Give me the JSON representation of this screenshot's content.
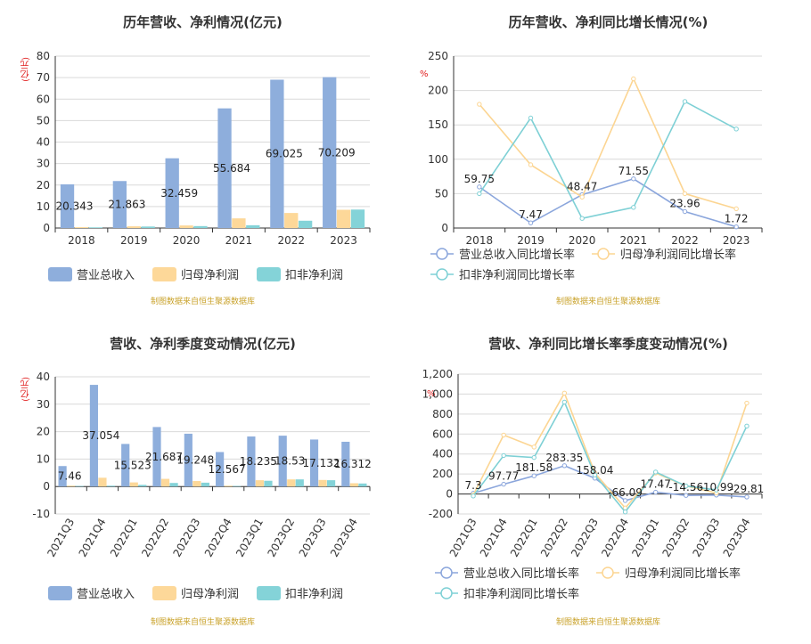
{
  "colors": {
    "series1": "#8eaedc",
    "series2": "#fdd899",
    "series3": "#84d3d8",
    "grid": "#d9d9d9",
    "axis": "#333333",
    "unit": "#e01e1e",
    "source": "#c9a22a"
  },
  "source_text": "制图数据来自恒生聚源数据库",
  "chart_data": [
    {
      "type": "bar",
      "title": "历年营收、净利情况(亿元)",
      "unit": "(亿元)",
      "categories": [
        "2018",
        "2019",
        "2020",
        "2021",
        "2022",
        "2023"
      ],
      "ylim": [
        0,
        80
      ],
      "yticks": [
        0,
        10,
        20,
        30,
        40,
        50,
        60,
        70,
        80
      ],
      "series": [
        {
          "name": "营业总收入",
          "values": [
            20.343,
            21.863,
            32.459,
            55.684,
            69.025,
            70.209
          ],
          "show_labels": true
        },
        {
          "name": "归母净利润",
          "values": [
            0.4,
            0.8,
            1.2,
            4.5,
            7.0,
            8.5
          ]
        },
        {
          "name": "扣非净利润",
          "values": [
            0.3,
            0.7,
            0.9,
            1.3,
            3.4,
            8.6
          ]
        }
      ],
      "data_labels": [
        "20.343",
        "21.863",
        "32.459",
        "55.684",
        "69.025",
        "70.209"
      ],
      "legend": "bottom"
    },
    {
      "type": "line",
      "title": "历年营收、净利同比增长情况(%)",
      "unit": "%",
      "categories": [
        "2018",
        "2019",
        "2020",
        "2021",
        "2022",
        "2023"
      ],
      "ylim": [
        0,
        250
      ],
      "yticks": [
        0,
        50,
        100,
        150,
        200,
        250
      ],
      "series": [
        {
          "name": "营业总收入同比增长率",
          "values": [
            59.75,
            7.47,
            48.47,
            71.55,
            23.96,
            1.72
          ],
          "show_labels": true
        },
        {
          "name": "归母净利润同比增长率",
          "values": [
            180,
            92,
            45,
            217,
            50,
            28
          ]
        },
        {
          "name": "扣非净利润同比增长率",
          "values": [
            50,
            160,
            14,
            30,
            184,
            144
          ]
        }
      ],
      "data_labels": [
        "59.75",
        "7.47",
        "48.47",
        "71.55",
        "23.96",
        "1.72"
      ],
      "legend": "bottom"
    },
    {
      "type": "bar",
      "title": "营收、净利季度变动情况(亿元)",
      "unit": "(亿元)",
      "categories": [
        "2021Q3",
        "2021Q4",
        "2022Q1",
        "2022Q2",
        "2022Q3",
        "2022Q4",
        "2023Q1",
        "2023Q2",
        "2023Q3",
        "2023Q4"
      ],
      "ylim": [
        -10,
        40
      ],
      "yticks": [
        -10,
        0,
        10,
        20,
        30,
        40
      ],
      "series": [
        {
          "name": "营业总收入",
          "values": [
            7.46,
            37.054,
            15.523,
            21.687,
            19.248,
            12.567,
            18.235,
            18.53,
            17.132,
            16.312
          ],
          "show_labels": true
        },
        {
          "name": "归母净利润",
          "values": [
            0.3,
            3.2,
            1.5,
            2.8,
            2.0,
            0.3,
            2.3,
            2.6,
            2.4,
            1.2
          ]
        },
        {
          "name": "扣非净利润",
          "values": [
            0.2,
            0.3,
            0.6,
            1.3,
            1.4,
            0.2,
            2.1,
            2.6,
            2.3,
            1.1
          ]
        }
      ],
      "data_labels": [
        "7.46",
        "37.054",
        "15.523",
        "21.687",
        "19.248",
        "12.567",
        "18.235",
        "18.53",
        "17.132",
        "16.312"
      ],
      "legend": "bottom"
    },
    {
      "type": "line",
      "title": "营收、净利同比增长率季度变动情况(%)",
      "unit": "%",
      "categories": [
        "2021Q3",
        "2021Q4",
        "2022Q1",
        "2022Q2",
        "2022Q3",
        "2022Q4",
        "2023Q1",
        "2023Q2",
        "2023Q3",
        "2023Q4"
      ],
      "ylim": [
        -200,
        1200
      ],
      "yticks": [
        -200,
        0,
        200,
        400,
        600,
        800,
        1000,
        1200
      ],
      "ytick_labels": [
        "-200",
        "0",
        "200",
        "400",
        "600",
        "800",
        "1,000",
        "1,200"
      ],
      "series": [
        {
          "name": "营业总收入同比增长率",
          "values": [
            7.3,
            97.77,
            181.58,
            283.35,
            158.04,
            -66.09,
            17.47,
            -14.56,
            -10.99,
            -29.81
          ],
          "show_labels": true
        },
        {
          "name": "归母净利润同比增长率",
          "values": [
            -10,
            590,
            470,
            1010,
            210,
            -140,
            210,
            80,
            10,
            910
          ]
        },
        {
          "name": "扣非净利润同比增长率",
          "values": [
            -20,
            385,
            365,
            920,
            190,
            -180,
            220,
            80,
            40,
            680
          ]
        }
      ],
      "data_labels": [
        "7.3",
        "97.77",
        "181.58",
        "283.35",
        "158.04",
        "-66.09",
        "17.47",
        "-14.56",
        "-10.99",
        "-29.81"
      ],
      "legend": "bottom"
    }
  ]
}
